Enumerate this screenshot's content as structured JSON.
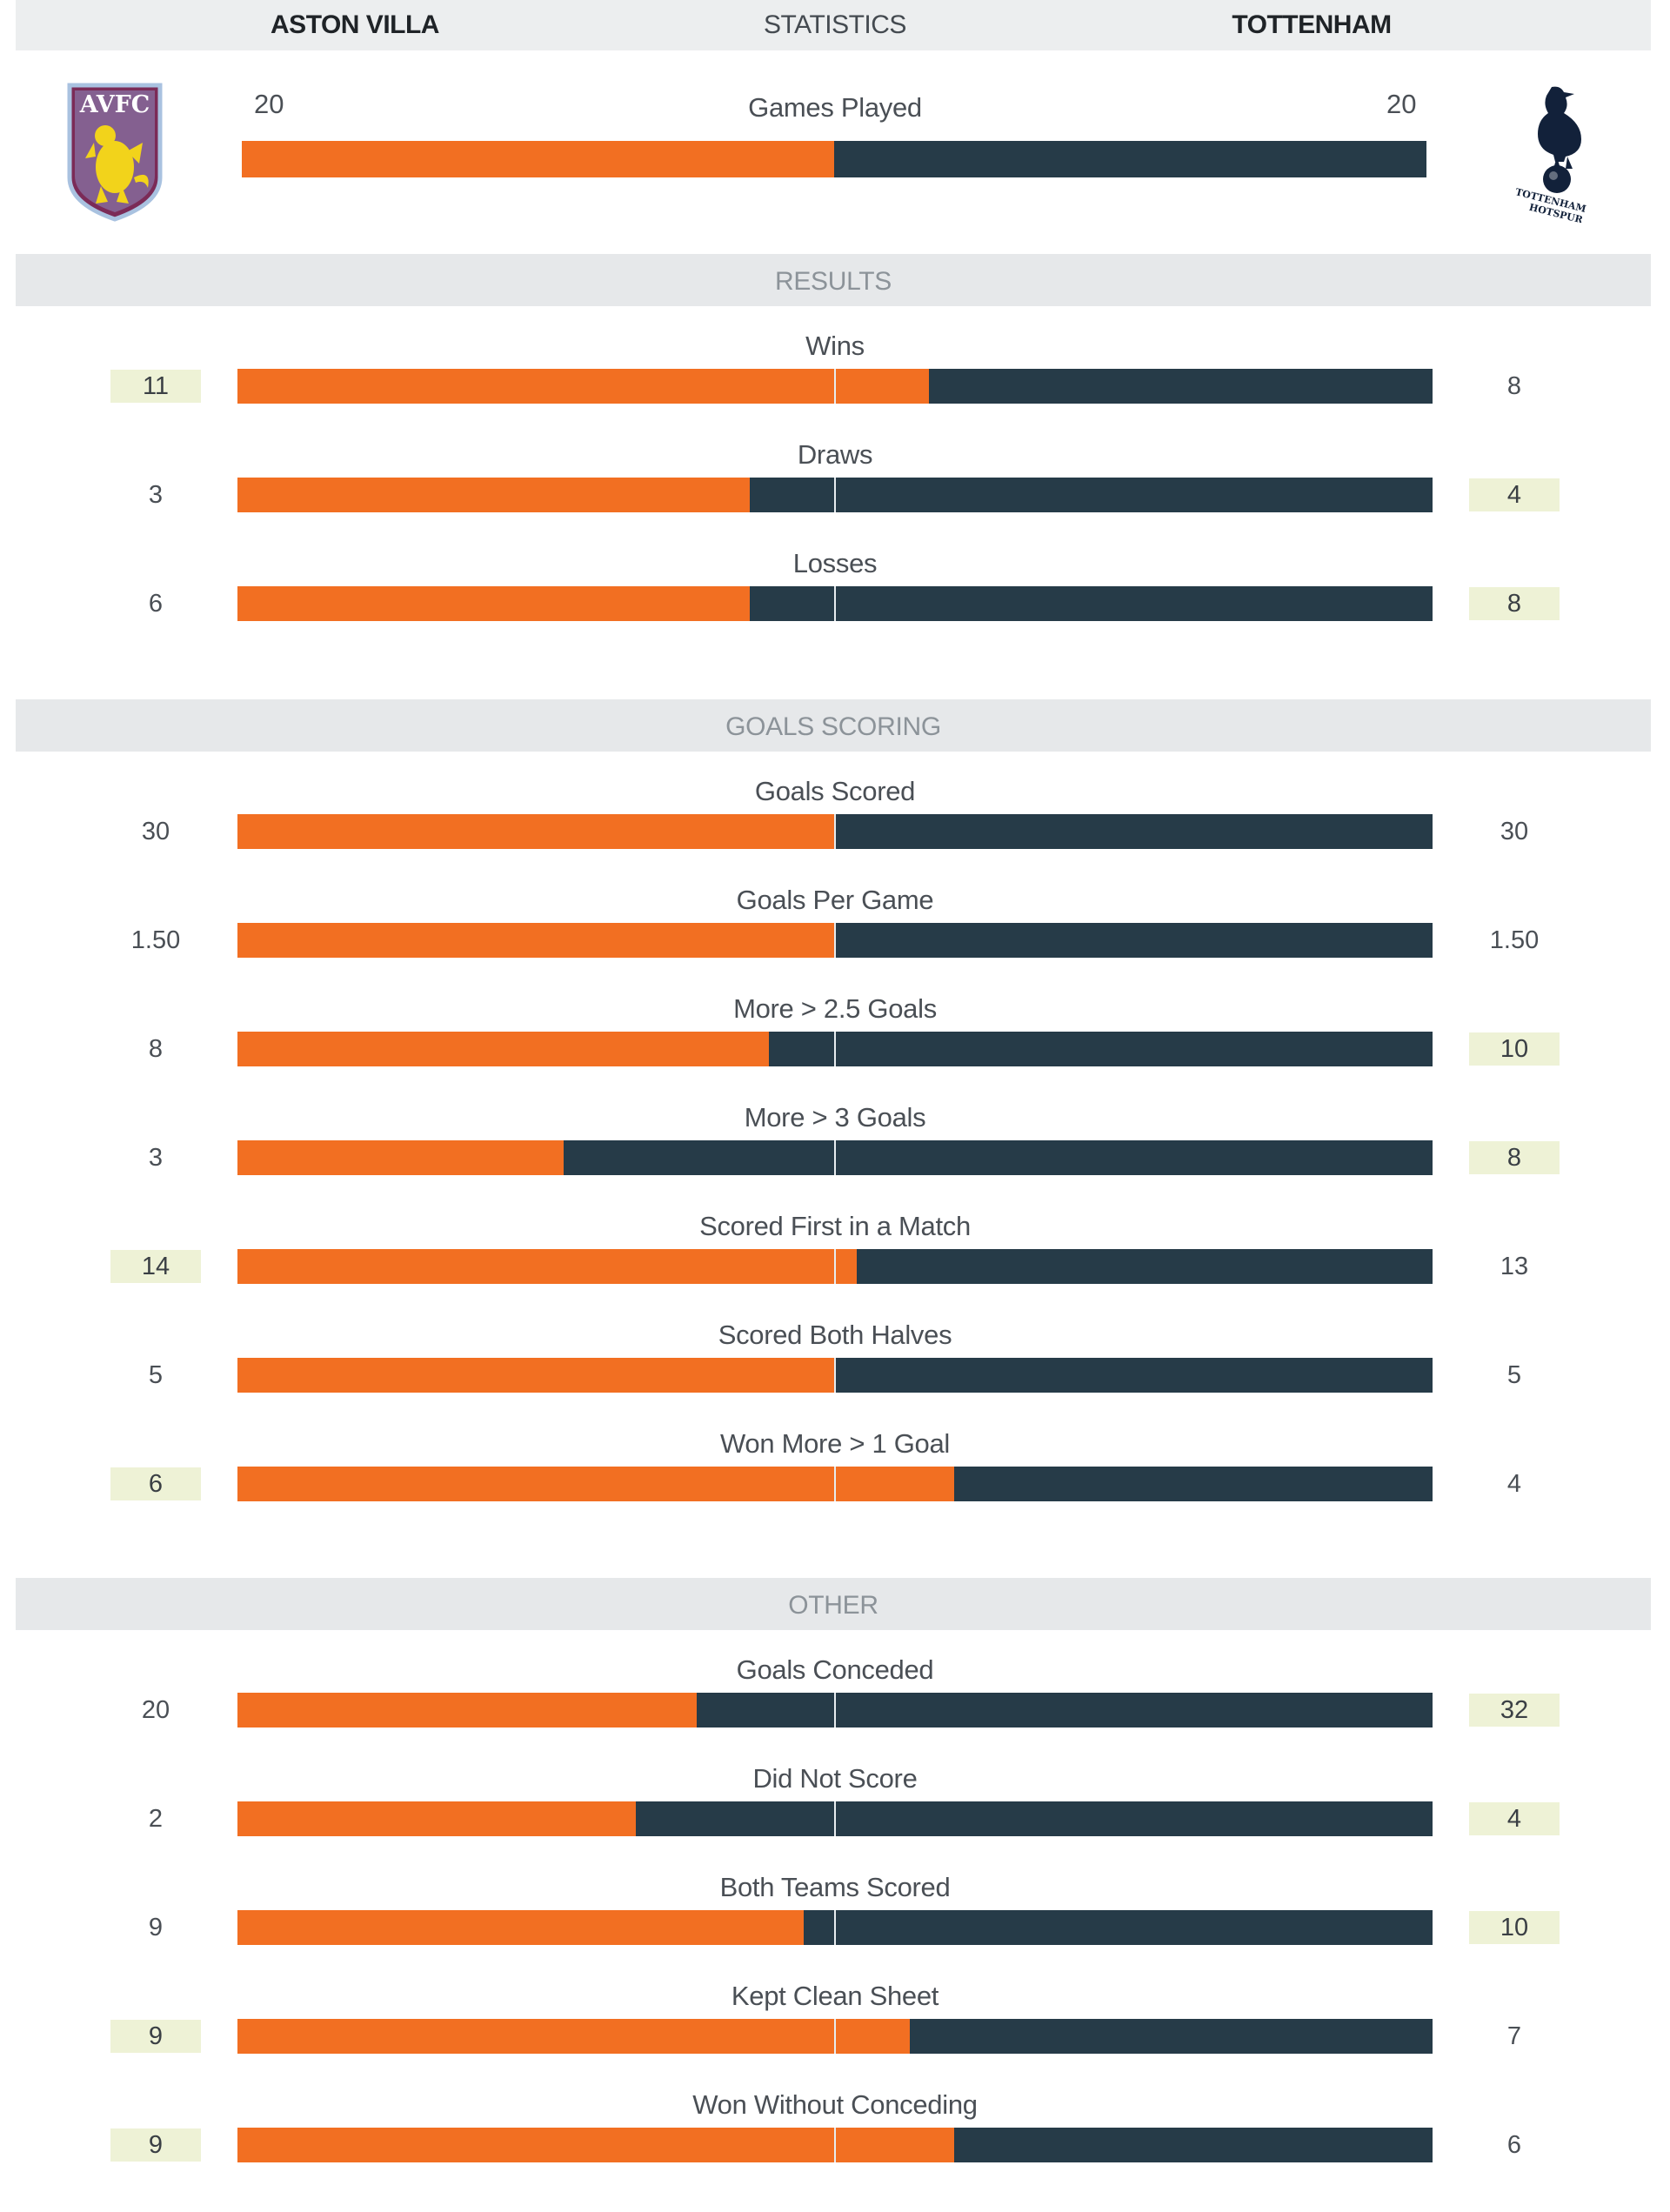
{
  "header": {
    "home_team": "ASTON VILLA",
    "title": "STATISTICS",
    "away_team": "TOTTENHAM"
  },
  "crests": {
    "home_initials": "AVFC",
    "away_text_line1": "TOTTENHAM",
    "away_text_line2": "HOTSPUR"
  },
  "colors": {
    "home": "#f26f22",
    "away": "#263b48",
    "highlight": "#eef2d6",
    "section_band": "#e6e8ea"
  },
  "chart_data": {
    "type": "bar",
    "title": "STATISTICS",
    "series_names": [
      "ASTON VILLA",
      "TOTTENHAM"
    ],
    "games_played": {
      "label": "Games Played",
      "home": "20",
      "away": "20"
    },
    "sections": [
      {
        "name": "RESULTS",
        "rows": [
          {
            "label": "Wins",
            "home": "11",
            "away": "8"
          },
          {
            "label": "Draws",
            "home": "3",
            "away": "4"
          },
          {
            "label": "Losses",
            "home": "6",
            "away": "8"
          }
        ]
      },
      {
        "name": "GOALS SCORING",
        "rows": [
          {
            "label": "Goals Scored",
            "home": "30",
            "away": "30"
          },
          {
            "label": "Goals Per Game",
            "home": "1.50",
            "away": "1.50"
          },
          {
            "label": "More > 2.5 Goals",
            "home": "8",
            "away": "10"
          },
          {
            "label": "More > 3 Goals",
            "home": "3",
            "away": "8"
          },
          {
            "label": "Scored First in a Match",
            "home": "14",
            "away": "13"
          },
          {
            "label": "Scored Both Halves",
            "home": "5",
            "away": "5"
          },
          {
            "label": "Won More > 1 Goal",
            "home": "6",
            "away": "4"
          }
        ]
      },
      {
        "name": "OTHER",
        "rows": [
          {
            "label": "Goals Conceded",
            "home": "20",
            "away": "32"
          },
          {
            "label": "Did Not Score",
            "home": "2",
            "away": "4"
          },
          {
            "label": "Both Teams Scored",
            "home": "9",
            "away": "10"
          },
          {
            "label": "Kept Clean Sheet",
            "home": "9",
            "away": "7"
          },
          {
            "label": "Won Without Conceding",
            "home": "9",
            "away": "6"
          }
        ]
      }
    ]
  }
}
